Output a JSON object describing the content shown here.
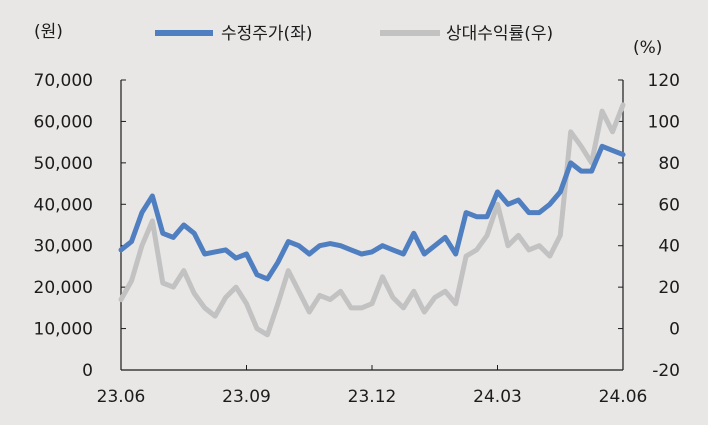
{
  "chart_data": {
    "type": "line",
    "left_axis_unit": "(원)",
    "right_axis_unit": "(%)",
    "x_tick_labels": [
      "23.06",
      "23.09",
      "23.12",
      "24.03",
      "24.06"
    ],
    "y_left_ticks": [
      "0",
      "10,000",
      "20,000",
      "30,000",
      "40,000",
      "50,000",
      "60,000",
      "70,000"
    ],
    "y_right_ticks": [
      "-20",
      "0",
      "20",
      "40",
      "60",
      "80",
      "100",
      "120"
    ],
    "ylim_left": [
      0,
      70000
    ],
    "ylim_right": [
      -20,
      120
    ],
    "grid": false,
    "legend_position": "top",
    "x_months": [
      0,
      0.25,
      0.5,
      0.75,
      1,
      1.25,
      1.5,
      1.75,
      2,
      2.25,
      2.5,
      2.75,
      3,
      3.25,
      3.5,
      3.75,
      4,
      4.25,
      4.5,
      4.75,
      5,
      5.25,
      5.5,
      5.75,
      6,
      6.25,
      6.5,
      6.75,
      7,
      7.25,
      7.5,
      7.75,
      8,
      8.25,
      8.5,
      8.75,
      9,
      9.25,
      9.5,
      9.75,
      10,
      10.25,
      10.5,
      10.75,
      11,
      11.25,
      11.5,
      11.75,
      12
    ],
    "series": [
      {
        "name": "수정주가(좌)",
        "axis": "left",
        "color": "#4f7fc0",
        "values": [
          29000,
          31000,
          38000,
          42000,
          33000,
          32000,
          35000,
          33000,
          28000,
          28500,
          29000,
          27000,
          28000,
          23000,
          22000,
          26000,
          31000,
          30000,
          28000,
          30000,
          30500,
          30000,
          29000,
          28000,
          28500,
          30000,
          29000,
          28000,
          33000,
          28000,
          30000,
          32000,
          28000,
          38000,
          37000,
          37000,
          43000,
          40000,
          41000,
          38000,
          38000,
          40000,
          43000,
          50000,
          48000,
          48000,
          54000,
          53000,
          52000
        ]
      },
      {
        "name": "상대수익률(우)",
        "axis": "right",
        "color": "#c2c2c2",
        "values": [
          14,
          23,
          40,
          52,
          22,
          20,
          28,
          17,
          10,
          6,
          15,
          20,
          12,
          0,
          -3,
          12,
          28,
          18,
          8,
          16,
          14,
          18,
          10,
          10,
          12,
          25,
          15,
          10,
          18,
          8,
          15,
          18,
          12,
          35,
          38,
          45,
          60,
          40,
          45,
          38,
          40,
          35,
          45,
          95,
          88,
          80,
          105,
          95,
          108
        ]
      }
    ]
  }
}
